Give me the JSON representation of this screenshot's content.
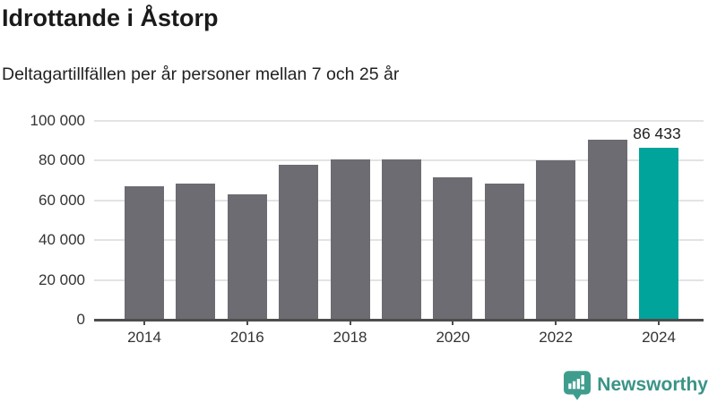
{
  "header": {
    "title": "Idrottande i Åstorp",
    "subtitle": "Deltagartillfällen per år personer mellan 7 och 25 år"
  },
  "chart_data": {
    "type": "bar",
    "title": "Idrottande i Åstorp",
    "subtitle": "Deltagartillfällen per år personer mellan 7 och 25 år",
    "categories": [
      "2014",
      "2015",
      "2016",
      "2017",
      "2018",
      "2019",
      "2020",
      "2021",
      "2022",
      "2023",
      "2024"
    ],
    "values": [
      67000,
      68500,
      63000,
      78000,
      80500,
      80500,
      71500,
      68500,
      80000,
      90500,
      86433
    ],
    "highlight_index": 10,
    "value_label_index": 10,
    "value_label_text": "86 433",
    "ylim": [
      0,
      100000
    ],
    "y_tick_labels": [
      "0",
      "20 000",
      "40 000",
      "60 000",
      "80 000",
      "100 000"
    ],
    "x_tick_labels": [
      "2014",
      "2016",
      "2018",
      "2020",
      "2022",
      "2024"
    ],
    "grid": true,
    "legend": "none",
    "colors": {
      "bar": "#6c6c72",
      "highlight": "#00a49b",
      "gridline": "#e3e3e3",
      "axis": "#4d4d4d"
    }
  },
  "footer": {
    "brand": "Newsworthy",
    "logo_icon": "newsworthy-chart-bubble-icon",
    "brand_color": "#3a9486",
    "icon_color": "#3f9d8e"
  }
}
